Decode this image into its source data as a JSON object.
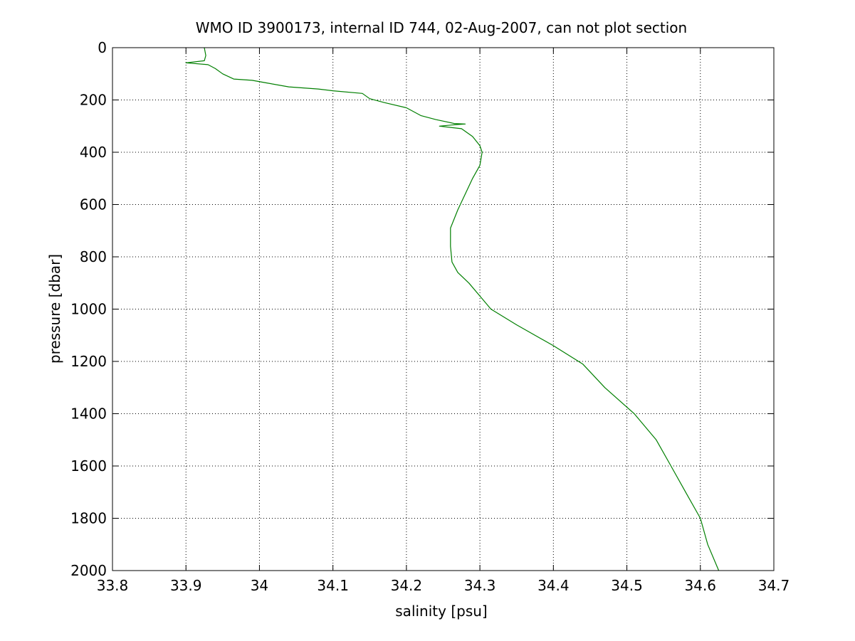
{
  "chart_data": {
    "type": "line",
    "title": "WMO ID 3900173, internal ID 744, 02-Aug-2007, can not plot section",
    "xlabel": "salinity [psu]",
    "ylabel": "pressure [dbar]",
    "xlim": [
      33.8,
      34.7
    ],
    "ylim": [
      0,
      2000
    ],
    "y_reversed": true,
    "grid": true,
    "xticks": [
      "33.8",
      "33.9",
      "34",
      "34.1",
      "34.2",
      "34.3",
      "34.4",
      "34.5",
      "34.6",
      "34.7"
    ],
    "yticks": [
      "0",
      "200",
      "400",
      "600",
      "800",
      "1000",
      "1200",
      "1400",
      "1600",
      "1800",
      "2000"
    ],
    "series": [
      {
        "color": "#007f00",
        "points": [
          [
            33.925,
            0
          ],
          [
            33.927,
            30
          ],
          [
            33.925,
            50
          ],
          [
            33.9,
            58
          ],
          [
            33.93,
            65
          ],
          [
            33.94,
            80
          ],
          [
            33.95,
            100
          ],
          [
            33.965,
            120
          ],
          [
            33.99,
            125
          ],
          [
            34.01,
            135
          ],
          [
            34.04,
            150
          ],
          [
            34.08,
            158
          ],
          [
            34.1,
            165
          ],
          [
            34.14,
            175
          ],
          [
            34.15,
            195
          ],
          [
            34.17,
            210
          ],
          [
            34.2,
            230
          ],
          [
            34.22,
            260
          ],
          [
            34.24,
            275
          ],
          [
            34.265,
            290
          ],
          [
            34.28,
            292
          ],
          [
            34.265,
            295
          ],
          [
            34.245,
            300
          ],
          [
            34.275,
            310
          ],
          [
            34.29,
            340
          ],
          [
            34.3,
            375
          ],
          [
            34.303,
            400
          ],
          [
            34.3,
            450
          ],
          [
            34.29,
            500
          ],
          [
            34.28,
            560
          ],
          [
            34.27,
            620
          ],
          [
            34.26,
            690
          ],
          [
            34.26,
            760
          ],
          [
            34.262,
            820
          ],
          [
            34.27,
            860
          ],
          [
            34.285,
            900
          ],
          [
            34.3,
            950
          ],
          [
            34.315,
            1000
          ],
          [
            34.35,
            1060
          ],
          [
            34.4,
            1140
          ],
          [
            34.44,
            1210
          ],
          [
            34.47,
            1300
          ],
          [
            34.51,
            1400
          ],
          [
            34.54,
            1500
          ],
          [
            34.56,
            1600
          ],
          [
            34.58,
            1700
          ],
          [
            34.6,
            1800
          ],
          [
            34.61,
            1900
          ],
          [
            34.625,
            2000
          ]
        ]
      }
    ]
  }
}
